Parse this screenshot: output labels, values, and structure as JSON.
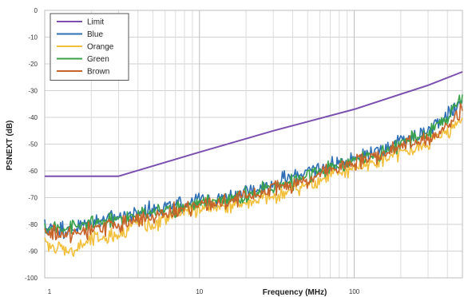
{
  "chart_data": {
    "type": "line",
    "xlabel": "Frequency (MHz)",
    "ylabel": "PSNEXT (dB)",
    "x_scale": "log",
    "xlim": [
      1,
      500
    ],
    "ylim": [
      -100,
      0
    ],
    "x_tick_labels": [
      "1",
      "10",
      "100"
    ],
    "y_tick_labels": [
      "0",
      "-10",
      "-20",
      "-30",
      "-40",
      "-50",
      "-60",
      "-70",
      "-80",
      "-90",
      "-100"
    ],
    "grid": true,
    "legend_position": "top-left",
    "series": [
      {
        "name": "Limit",
        "color": "#7a4fb0",
        "x": [
          1,
          3,
          10,
          30,
          100,
          300,
          500
        ],
        "y": [
          -62,
          -62,
          -53,
          -45,
          -37,
          -28,
          -23
        ]
      },
      {
        "name": "Blue",
        "color": "#2f6fb5",
        "x": [
          1,
          1.5,
          2,
          3,
          4,
          5,
          7,
          10,
          15,
          20,
          30,
          40,
          50,
          70,
          100,
          150,
          200,
          300,
          400,
          500
        ],
        "y": [
          -81,
          -82,
          -79,
          -77,
          -76,
          -74,
          -73,
          -71,
          -70,
          -68,
          -65,
          -62,
          -60,
          -58,
          -55,
          -52,
          -49,
          -45,
          -39,
          -34
        ]
      },
      {
        "name": "Orange",
        "color": "#f2c03d",
        "x": [
          1,
          1.5,
          2,
          3,
          4,
          5,
          7,
          10,
          15,
          20,
          30,
          40,
          50,
          70,
          100,
          150,
          200,
          300,
          400,
          500
        ],
        "y": [
          -88,
          -90,
          -86,
          -84,
          -79,
          -81,
          -76,
          -74,
          -73,
          -72,
          -70,
          -67,
          -65,
          -62,
          -59,
          -56,
          -54,
          -50,
          -45,
          -40
        ]
      },
      {
        "name": "Green",
        "color": "#3aa24a",
        "x": [
          1,
          1.5,
          2,
          3,
          4,
          5,
          7,
          10,
          15,
          20,
          30,
          40,
          50,
          70,
          100,
          150,
          200,
          300,
          400,
          500
        ],
        "y": [
          -82,
          -81,
          -80,
          -78,
          -77,
          -75,
          -74,
          -72,
          -70,
          -69,
          -66,
          -64,
          -62,
          -59,
          -56,
          -53,
          -50,
          -46,
          -40,
          -31
        ]
      },
      {
        "name": "Brown",
        "color": "#c8642a",
        "x": [
          1,
          1.5,
          2,
          3,
          4,
          5,
          7,
          10,
          15,
          20,
          30,
          40,
          50,
          70,
          100,
          150,
          200,
          300,
          400,
          500
        ],
        "y": [
          -83,
          -84,
          -82,
          -80,
          -78,
          -77,
          -75,
          -73,
          -72,
          -70,
          -67,
          -65,
          -63,
          -60,
          -57,
          -54,
          -51,
          -48,
          -44,
          -37
        ]
      }
    ]
  }
}
